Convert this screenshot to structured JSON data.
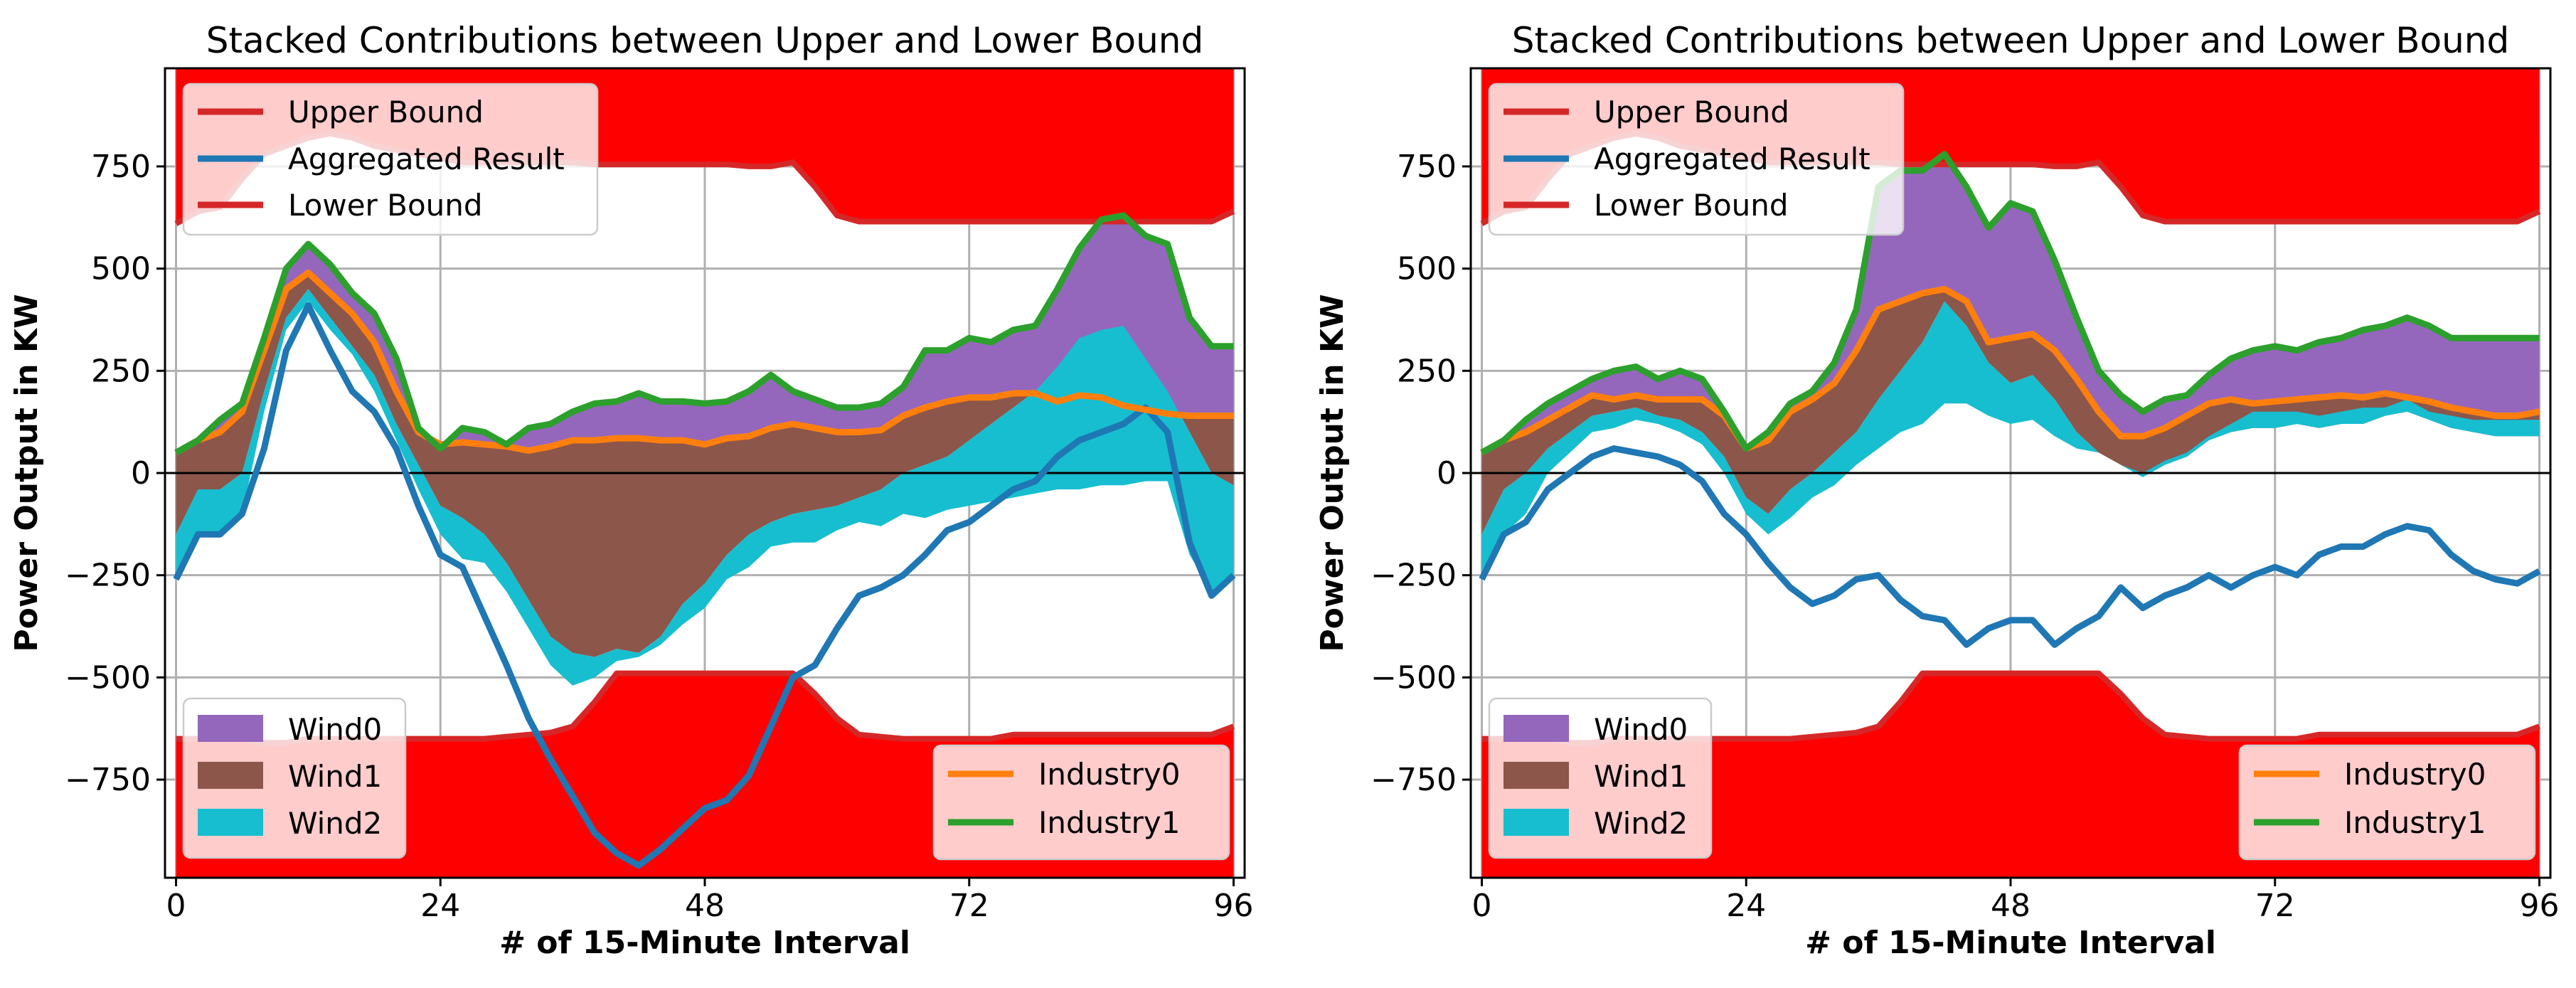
{
  "chart_data": [
    {
      "type": "area",
      "title": "Stacked Contributions between Upper and Lower Bound",
      "xlabel": "# of 15-Minute Interval",
      "ylabel": "Power Output in KW",
      "xlim": [
        -1,
        97
      ],
      "ylim": [
        -990,
        990
      ],
      "xticks": [
        0,
        24,
        48,
        72,
        96
      ],
      "yticks": [
        -750,
        -500,
        -250,
        0,
        250,
        500,
        750
      ],
      "grid": true,
      "legend_top_left": [
        "Upper Bound",
        "Aggregated Result",
        "Lower Bound"
      ],
      "legend_bottom_left": [
        "Wind0",
        "Wind1",
        "Wind2"
      ],
      "legend_bottom_right": [
        "Industry0",
        "Industry1"
      ],
      "colors": {
        "bound": "#ff0000",
        "bound_line": "#d62728",
        "aggregated": "#1f77b4",
        "wind0": "#9467bd",
        "wind1": "#8c564b",
        "wind2": "#17becf",
        "industry0": "#ff7f0e",
        "industry1": "#2ca02c"
      },
      "x": [
        0,
        2,
        4,
        6,
        8,
        10,
        12,
        14,
        16,
        18,
        20,
        22,
        24,
        26,
        28,
        30,
        32,
        34,
        36,
        38,
        40,
        42,
        44,
        46,
        48,
        50,
        52,
        54,
        56,
        58,
        60,
        62,
        64,
        66,
        68,
        70,
        72,
        74,
        76,
        78,
        80,
        82,
        84,
        86,
        88,
        90,
        92,
        94,
        96
      ],
      "upper_bound": [
        610,
        640,
        650,
        720,
        780,
        800,
        820,
        830,
        820,
        800,
        790,
        780,
        770,
        760,
        760,
        760,
        760,
        760,
        760,
        755,
        755,
        755,
        755,
        755,
        755,
        755,
        750,
        750,
        760,
        700,
        630,
        615,
        615,
        615,
        615,
        615,
        615,
        615,
        615,
        615,
        615,
        615,
        615,
        615,
        615,
        615,
        615,
        615,
        640
      ],
      "lower_bound": [
        -650,
        -650,
        -650,
        -650,
        -660,
        -660,
        -650,
        -650,
        -650,
        -650,
        -650,
        -650,
        -650,
        -650,
        -650,
        -645,
        -640,
        -635,
        -620,
        -560,
        -490,
        -490,
        -490,
        -490,
        -490,
        -490,
        -490,
        -490,
        -490,
        -540,
        -600,
        -640,
        -645,
        -650,
        -650,
        -650,
        -650,
        -650,
        -640,
        -640,
        -640,
        -640,
        -640,
        -640,
        -640,
        -640,
        -640,
        -640,
        -620
      ],
      "wind2": [
        -260,
        -150,
        -150,
        -100,
        150,
        350,
        420,
        350,
        290,
        200,
        80,
        -40,
        -150,
        -210,
        -220,
        -290,
        -380,
        -470,
        -520,
        -500,
        -460,
        -450,
        -420,
        -370,
        -330,
        -260,
        -230,
        -180,
        -170,
        -170,
        -140,
        -120,
        -130,
        -100,
        -110,
        -90,
        -80,
        -70,
        -60,
        -50,
        -40,
        -40,
        -30,
        -30,
        -20,
        -20,
        -200,
        -290,
        -250
      ],
      "wind1": [
        -150,
        -40,
        -40,
        0,
        200,
        380,
        450,
        380,
        310,
        240,
        120,
        20,
        -80,
        -110,
        -150,
        -220,
        -310,
        -400,
        -440,
        -450,
        -430,
        -440,
        -400,
        -320,
        -270,
        -200,
        -150,
        -120,
        -100,
        -90,
        -80,
        -60,
        -40,
        0,
        20,
        40,
        80,
        120,
        160,
        200,
        260,
        330,
        350,
        360,
        280,
        200,
        100,
        0,
        -30
      ],
      "industry0": [
        50,
        80,
        100,
        150,
        300,
        450,
        490,
        440,
        390,
        320,
        200,
        100,
        70,
        75,
        70,
        65,
        55,
        65,
        80,
        80,
        85,
        85,
        80,
        80,
        70,
        85,
        90,
        110,
        120,
        110,
        100,
        100,
        105,
        140,
        160,
        175,
        185,
        185,
        195,
        195,
        175,
        190,
        185,
        165,
        155,
        145,
        140,
        140,
        140
      ],
      "aggregated": [
        -260,
        -150,
        -150,
        -100,
        60,
        300,
        410,
        300,
        200,
        150,
        60,
        -80,
        -200,
        -230,
        -350,
        -470,
        -600,
        -700,
        -790,
        -880,
        -930,
        -960,
        -920,
        -870,
        -820,
        -800,
        -740,
        -620,
        -500,
        -470,
        -380,
        -300,
        -280,
        -250,
        -200,
        -140,
        -120,
        -80,
        -40,
        -20,
        40,
        80,
        100,
        120,
        160,
        100,
        -170,
        -300,
        -250
      ],
      "industry1": [
        50,
        80,
        130,
        170,
        330,
        500,
        560,
        510,
        440,
        390,
        280,
        110,
        60,
        110,
        100,
        70,
        110,
        120,
        150,
        170,
        175,
        195,
        175,
        175,
        170,
        175,
        200,
        240,
        200,
        180,
        160,
        160,
        170,
        210,
        300,
        300,
        330,
        320,
        350,
        360,
        450,
        550,
        620,
        630,
        580,
        560,
        380,
        310,
        310
      ]
    },
    {
      "type": "area",
      "title": "Stacked Contributions between Upper and Lower Bound",
      "xlabel": "# of 15-Minute Interval",
      "ylabel": "Power Output in KW",
      "xlim": [
        -1,
        97
      ],
      "ylim": [
        -990,
        990
      ],
      "xticks": [
        0,
        24,
        48,
        72,
        96
      ],
      "yticks": [
        -750,
        -500,
        -250,
        0,
        250,
        500,
        750
      ],
      "grid": true,
      "legend_top_left": [
        "Upper Bound",
        "Aggregated Result",
        "Lower Bound"
      ],
      "legend_bottom_left": [
        "Wind0",
        "Wind1",
        "Wind2"
      ],
      "legend_bottom_right": [
        "Industry0",
        "Industry1"
      ],
      "colors": {
        "bound": "#ff0000",
        "bound_line": "#d62728",
        "aggregated": "#1f77b4",
        "wind0": "#9467bd",
        "wind1": "#8c564b",
        "wind2": "#17becf",
        "industry0": "#ff7f0e",
        "industry1": "#2ca02c"
      },
      "x": [
        0,
        2,
        4,
        6,
        8,
        10,
        12,
        14,
        16,
        18,
        20,
        22,
        24,
        26,
        28,
        30,
        32,
        34,
        36,
        38,
        40,
        42,
        44,
        46,
        48,
        50,
        52,
        54,
        56,
        58,
        60,
        62,
        64,
        66,
        68,
        70,
        72,
        74,
        76,
        78,
        80,
        82,
        84,
        86,
        88,
        90,
        92,
        94,
        96
      ],
      "upper_bound": [
        610,
        640,
        650,
        720,
        780,
        800,
        820,
        830,
        820,
        800,
        790,
        780,
        770,
        760,
        760,
        760,
        760,
        760,
        760,
        755,
        755,
        755,
        755,
        755,
        755,
        755,
        750,
        750,
        760,
        700,
        630,
        615,
        615,
        615,
        615,
        615,
        615,
        615,
        615,
        615,
        615,
        615,
        615,
        615,
        615,
        615,
        615,
        615,
        640
      ],
      "lower_bound": [
        -650,
        -650,
        -650,
        -650,
        -660,
        -660,
        -650,
        -650,
        -650,
        -650,
        -650,
        -650,
        -650,
        -650,
        -650,
        -645,
        -640,
        -635,
        -620,
        -560,
        -490,
        -490,
        -490,
        -490,
        -490,
        -490,
        -490,
        -490,
        -490,
        -540,
        -600,
        -640,
        -645,
        -650,
        -650,
        -650,
        -650,
        -650,
        -640,
        -640,
        -640,
        -640,
        -640,
        -640,
        -640,
        -640,
        -640,
        -640,
        -620
      ],
      "wind2": [
        -260,
        -150,
        -100,
        0,
        50,
        100,
        110,
        130,
        120,
        100,
        70,
        0,
        -100,
        -150,
        -110,
        -60,
        -30,
        20,
        60,
        100,
        120,
        170,
        170,
        140,
        120,
        130,
        90,
        60,
        50,
        20,
        0,
        30,
        50,
        90,
        120,
        150,
        150,
        150,
        140,
        150,
        160,
        160,
        180,
        150,
        140,
        130,
        130,
        130,
        130
      ],
      "wind1": [
        -150,
        -40,
        0,
        60,
        100,
        140,
        150,
        160,
        140,
        130,
        100,
        40,
        -60,
        -100,
        -40,
        0,
        50,
        100,
        180,
        250,
        320,
        420,
        360,
        270,
        220,
        240,
        180,
        100,
        50,
        20,
        -10,
        20,
        40,
        80,
        100,
        110,
        110,
        120,
        110,
        120,
        120,
        140,
        150,
        130,
        110,
        100,
        90,
        90,
        90
      ],
      "industry0": [
        50,
        80,
        100,
        130,
        160,
        190,
        180,
        190,
        180,
        180,
        180,
        140,
        60,
        80,
        150,
        180,
        220,
        300,
        400,
        420,
        440,
        450,
        420,
        320,
        330,
        340,
        300,
        230,
        150,
        90,
        90,
        110,
        140,
        170,
        180,
        170,
        175,
        180,
        185,
        190,
        185,
        195,
        185,
        175,
        160,
        150,
        140,
        140,
        150
      ],
      "aggregated": [
        -260,
        -150,
        -120,
        -40,
        0,
        40,
        60,
        50,
        40,
        20,
        -20,
        -100,
        -150,
        -220,
        -280,
        -320,
        -300,
        -260,
        -250,
        -310,
        -350,
        -360,
        -420,
        -380,
        -360,
        -360,
        -420,
        -380,
        -350,
        -280,
        -330,
        -300,
        -280,
        -250,
        -280,
        -250,
        -230,
        -250,
        -200,
        -180,
        -180,
        -150,
        -130,
        -140,
        -200,
        -240,
        -260,
        -270,
        -240
      ],
      "industry1": [
        50,
        80,
        130,
        170,
        200,
        230,
        250,
        260,
        230,
        250,
        230,
        150,
        60,
        100,
        170,
        200,
        270,
        400,
        700,
        740,
        740,
        780,
        700,
        600,
        660,
        640,
        520,
        380,
        250,
        190,
        150,
        180,
        190,
        240,
        280,
        300,
        310,
        300,
        320,
        330,
        350,
        360,
        380,
        360,
        330,
        330,
        330,
        330,
        330
      ]
    }
  ]
}
